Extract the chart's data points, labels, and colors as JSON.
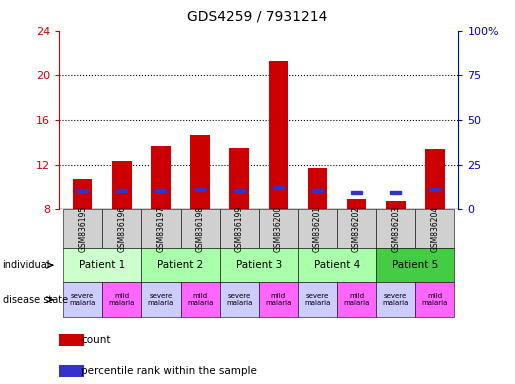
{
  "title": "GDS4259 / 7931214",
  "samples": [
    "GSM836195",
    "GSM836196",
    "GSM836197",
    "GSM836198",
    "GSM836199",
    "GSM836200",
    "GSM836201",
    "GSM836202",
    "GSM836203",
    "GSM836204"
  ],
  "counts": [
    10.7,
    12.3,
    13.7,
    14.7,
    13.5,
    21.3,
    11.7,
    8.9,
    8.7,
    13.4
  ],
  "percentile_ranks": [
    10.5,
    10.5,
    10.5,
    11.0,
    10.5,
    12.0,
    10.5,
    9.5,
    9.5,
    11.0
  ],
  "ylim_left": [
    8,
    24
  ],
  "ylim_right": [
    0,
    100
  ],
  "yticks_left": [
    8,
    12,
    16,
    20,
    24
  ],
  "yticks_right": [
    0,
    25,
    50,
    75,
    100
  ],
  "bar_color": "#cc0000",
  "blue_color": "#3333cc",
  "bar_width": 0.5,
  "base": 8,
  "background_color": "#ffffff",
  "tick_label_color_left": "#cc0000",
  "tick_label_color_right": "#0000cc",
  "patient_data": [
    {
      "label": "Patient 1",
      "start": 0,
      "end": 2,
      "color": "#ccffcc"
    },
    {
      "label": "Patient 2",
      "start": 2,
      "end": 4,
      "color": "#aaffaa"
    },
    {
      "label": "Patient 3",
      "start": 4,
      "end": 6,
      "color": "#aaffaa"
    },
    {
      "label": "Patient 4",
      "start": 6,
      "end": 8,
      "color": "#aaffaa"
    },
    {
      "label": "Patient 5",
      "start": 8,
      "end": 10,
      "color": "#44cc44"
    }
  ],
  "disease_states": [
    "severe",
    "mild",
    "severe",
    "mild",
    "severe",
    "mild",
    "severe",
    "mild",
    "severe",
    "mild"
  ],
  "disease_severe_color": "#ccccff",
  "disease_mild_color": "#ff66ff",
  "grid_yticks": [
    12,
    16,
    20
  ]
}
